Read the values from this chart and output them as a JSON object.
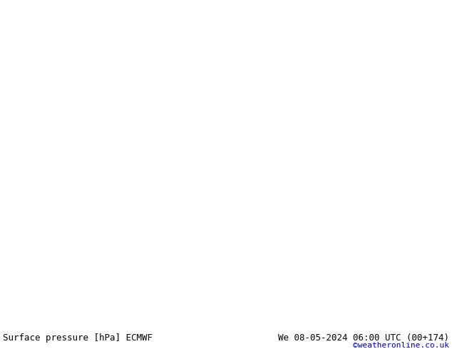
{
  "title_left": "Surface pressure [hPa] ECMWF",
  "title_right": "We 08-05-2024 06:00 UTC (00+174)",
  "credit": "©weatheronline.co.uk",
  "bg_ocean": "#d3d3d3",
  "bg_land": "#c8e6b0",
  "coast_color": "#808080",
  "text_color_black": "#000000",
  "text_color_blue": "#0000bb",
  "text_color_red": "#ff0000",
  "contour_red": "#ff0000",
  "contour_black": "#000000",
  "contour_blue": "#0000bb",
  "label_fontsize": 9,
  "credit_fontsize": 8,
  "isobar_lw": 1.2,
  "lon_min": -25,
  "lon_max": 25,
  "lat_min": 43,
  "lat_max": 66
}
